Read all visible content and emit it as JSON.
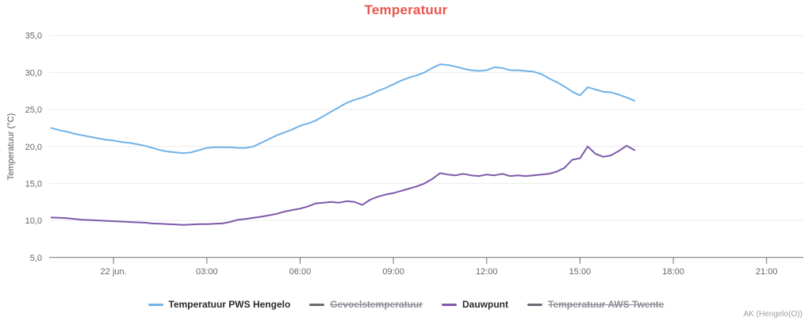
{
  "chart_data": {
    "type": "line",
    "title": "Temperatuur",
    "title_color": "#e8554e",
    "ylabel": "Temperatuur (°C)",
    "footer": "AK (Hengelo(O))",
    "grid_color": "#ececec",
    "axis_color": "#707070",
    "legend_position": "bottom",
    "y_axis": {
      "min": 5,
      "max": 35,
      "tick_values": [
        35,
        30,
        25,
        20,
        15,
        10,
        5
      ],
      "tick_labels": [
        "35,0",
        "30,0",
        "25,0",
        "20,0",
        "15,0",
        "10,0",
        "5,0"
      ]
    },
    "x_axis": {
      "start_hour": -2.07,
      "end_hour": 22.18,
      "ticks": [
        {
          "hour": 0,
          "label": "22 jun."
        },
        {
          "hour": 3,
          "label": "03:00"
        },
        {
          "hour": 6,
          "label": "06:00"
        },
        {
          "hour": 9,
          "label": "09:00"
        },
        {
          "hour": 12,
          "label": "12:00"
        },
        {
          "hour": 15,
          "label": "15:00"
        },
        {
          "hour": 18,
          "label": "18:00"
        },
        {
          "hour": 21,
          "label": "21:00"
        }
      ]
    },
    "series": [
      {
        "name": "Temperatuur PWS Hengelo",
        "color": "#6fb2e8",
        "active": true,
        "start_hour": -2,
        "step_hours": 0.25,
        "values": [
          22.5,
          22.2,
          22.0,
          21.7,
          21.5,
          21.3,
          21.1,
          20.9,
          20.8,
          20.6,
          20.5,
          20.3,
          20.1,
          19.8,
          19.5,
          19.3,
          19.2,
          19.1,
          19.2,
          19.5,
          19.8,
          19.9,
          19.9,
          19.9,
          19.8,
          19.8,
          20.0,
          20.5,
          21.0,
          21.5,
          21.9,
          22.3,
          22.8,
          23.1,
          23.5,
          24.1,
          24.7,
          25.3,
          25.9,
          26.3,
          26.6,
          27.0,
          27.5,
          27.9,
          28.4,
          28.9,
          29.3,
          29.6,
          30.0,
          30.6,
          31.1,
          31.0,
          30.8,
          30.5,
          30.3,
          30.2,
          30.3,
          30.7,
          30.6,
          30.3,
          30.3,
          30.2,
          30.1,
          29.8,
          29.2,
          28.7,
          28.1,
          27.4,
          26.9,
          28.0,
          27.7,
          27.4,
          27.3,
          27.0,
          26.6,
          26.2
        ]
      },
      {
        "name": "Gevoelstemperatuur",
        "color": "#676b72",
        "active": false,
        "start_hour": -2,
        "step_hours": 0.25,
        "values": []
      },
      {
        "name": "Dauwpunt",
        "color": "#7d59a9",
        "active": true,
        "start_hour": -2,
        "step_hours": 0.25,
        "values": [
          10.4,
          10.35,
          10.3,
          10.2,
          10.1,
          10.05,
          10.0,
          9.95,
          9.9,
          9.85,
          9.8,
          9.75,
          9.7,
          9.6,
          9.55,
          9.5,
          9.45,
          9.4,
          9.45,
          9.5,
          9.5,
          9.55,
          9.6,
          9.8,
          10.1,
          10.2,
          10.35,
          10.5,
          10.7,
          10.9,
          11.2,
          11.4,
          11.6,
          11.9,
          12.3,
          12.4,
          12.5,
          12.4,
          12.6,
          12.5,
          12.1,
          12.8,
          13.2,
          13.5,
          13.7,
          14.0,
          14.3,
          14.6,
          15.0,
          15.6,
          16.4,
          16.2,
          16.1,
          16.3,
          16.1,
          16.0,
          16.2,
          16.1,
          16.3,
          16.0,
          16.1,
          16.0,
          16.1,
          16.2,
          16.3,
          16.6,
          17.1,
          18.2,
          18.4,
          20.0,
          19.0,
          18.6,
          18.8,
          19.4,
          20.1,
          19.5
        ]
      },
      {
        "name": "Temperatuur AWS Twente",
        "color": "#676b72",
        "active": false,
        "start_hour": -2,
        "step_hours": 0.25,
        "values": []
      }
    ]
  }
}
